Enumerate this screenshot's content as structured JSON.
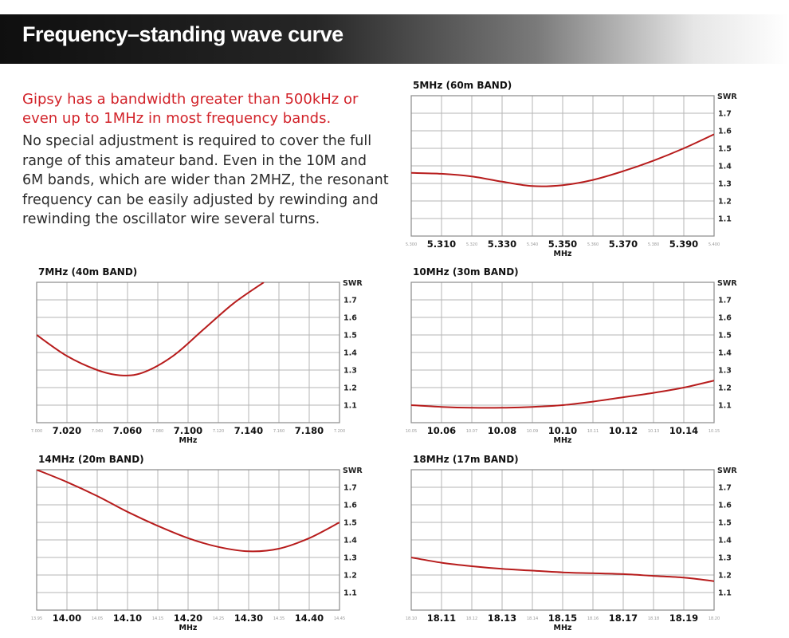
{
  "header": {
    "title": "Frequency–standing wave curve"
  },
  "intro": {
    "highlight": "Gipsy has a bandwidth greater than 500kHz or even up to 1MHz in most frequency bands.",
    "body": "No special adjustment is required to cover the full range of this amateur band. Even in the 10M and 6M bands, which are wider than 2MHZ, the resonant frequency can be easily adjusted by rewinding and rewinding the oscillator wire several turns."
  },
  "colors": {
    "curve": "#b71c1c",
    "grid": "#b5b5b5",
    "frame": "#8a8a8a",
    "highlight_text": "#d2232a"
  },
  "chart_data": [
    {
      "type": "line",
      "title": "5MHz (60m BAND)",
      "xlabel": "MHz",
      "ylabel": "SWR",
      "xlim": [
        5.3,
        5.4
      ],
      "ylim": [
        1.0,
        1.8
      ],
      "grid": true,
      "x_ticks": [
        "5.300",
        "5.310",
        "5.320",
        "5.330",
        "5.340",
        "5.350",
        "5.360",
        "5.370",
        "5.380",
        "5.390",
        "5.400"
      ],
      "y_ticks": [
        "1.7",
        "1.6",
        "1.5",
        "1.4",
        "1.3",
        "1.2",
        "1.1"
      ],
      "series": [
        {
          "x": [
            5.3,
            5.31,
            5.32,
            5.33,
            5.34,
            5.35,
            5.36,
            5.37,
            5.38,
            5.39,
            5.4
          ],
          "y": [
            1.36,
            1.355,
            1.34,
            1.31,
            1.285,
            1.29,
            1.32,
            1.37,
            1.43,
            1.5,
            1.58
          ]
        }
      ]
    },
    {
      "type": "line",
      "title": "7MHz (40m BAND)",
      "xlabel": "MHz",
      "ylabel": "SWR",
      "xlim": [
        7.0,
        7.2
      ],
      "ylim": [
        1.0,
        1.8
      ],
      "grid": true,
      "x_ticks": [
        "7.000",
        "7.020",
        "7.040",
        "7.060",
        "7.080",
        "7.100",
        "7.120",
        "7.140",
        "7.160",
        "7.180",
        "7.200"
      ],
      "y_ticks": [
        "1.7",
        "1.6",
        "1.5",
        "1.4",
        "1.3",
        "1.2",
        "1.1"
      ],
      "series": [
        {
          "x": [
            7.0,
            7.02,
            7.04,
            7.055,
            7.07,
            7.09,
            7.11,
            7.13,
            7.15
          ],
          "y": [
            1.5,
            1.38,
            1.3,
            1.27,
            1.285,
            1.38,
            1.53,
            1.68,
            1.8
          ]
        }
      ]
    },
    {
      "type": "line",
      "title": "10MHz (30m BAND)",
      "xlabel": "MHz",
      "ylabel": "SWR",
      "xlim": [
        10.05,
        10.15
      ],
      "ylim": [
        1.0,
        1.8
      ],
      "grid": true,
      "x_ticks": [
        "10.05",
        "10.06",
        "10.07",
        "10.08",
        "10.09",
        "10.10",
        "10.11",
        "10.12",
        "10.13",
        "10.14",
        "10.15"
      ],
      "y_ticks": [
        "1.7",
        "1.6",
        "1.5",
        "1.4",
        "1.3",
        "1.2",
        "1.1"
      ],
      "series": [
        {
          "x": [
            10.05,
            10.06,
            10.07,
            10.08,
            10.09,
            10.1,
            10.11,
            10.12,
            10.13,
            10.14,
            10.15
          ],
          "y": [
            1.1,
            1.09,
            1.085,
            1.085,
            1.09,
            1.1,
            1.12,
            1.145,
            1.17,
            1.2,
            1.24
          ]
        }
      ]
    },
    {
      "type": "line",
      "title": "14MHz (20m BAND)",
      "xlabel": "MHz",
      "ylabel": "SWR",
      "xlim": [
        13.95,
        14.45
      ],
      "ylim": [
        1.0,
        1.8
      ],
      "grid": true,
      "x_ticks": [
        "13.95",
        "14.00",
        "14.05",
        "14.10",
        "14.15",
        "14.20",
        "14.25",
        "14.30",
        "14.35",
        "14.40",
        "14.45"
      ],
      "y_ticks": [
        "1.7",
        "1.6",
        "1.5",
        "1.4",
        "1.3",
        "1.2",
        "1.1"
      ],
      "series": [
        {
          "x": [
            13.95,
            14.0,
            14.05,
            14.1,
            14.15,
            14.2,
            14.25,
            14.3,
            14.35,
            14.4,
            14.45
          ],
          "y": [
            1.8,
            1.73,
            1.65,
            1.56,
            1.48,
            1.41,
            1.36,
            1.335,
            1.35,
            1.41,
            1.5
          ]
        }
      ]
    },
    {
      "type": "line",
      "title": "18MHz (17m BAND)",
      "xlabel": "MHz",
      "ylabel": "SWR",
      "xlim": [
        18.1,
        18.2
      ],
      "ylim": [
        1.0,
        1.8
      ],
      "grid": true,
      "x_ticks": [
        "18.10",
        "18.11",
        "18.12",
        "18.13",
        "18.14",
        "18.15",
        "18.16",
        "18.17",
        "18.18",
        "18.19",
        "18.20"
      ],
      "y_ticks": [
        "1.7",
        "1.6",
        "1.5",
        "1.4",
        "1.3",
        "1.2",
        "1.1"
      ],
      "series": [
        {
          "x": [
            18.1,
            18.11,
            18.12,
            18.13,
            18.14,
            18.15,
            18.16,
            18.17,
            18.18,
            18.19,
            18.2
          ],
          "y": [
            1.3,
            1.27,
            1.25,
            1.235,
            1.225,
            1.215,
            1.21,
            1.205,
            1.195,
            1.185,
            1.165
          ]
        }
      ]
    }
  ]
}
